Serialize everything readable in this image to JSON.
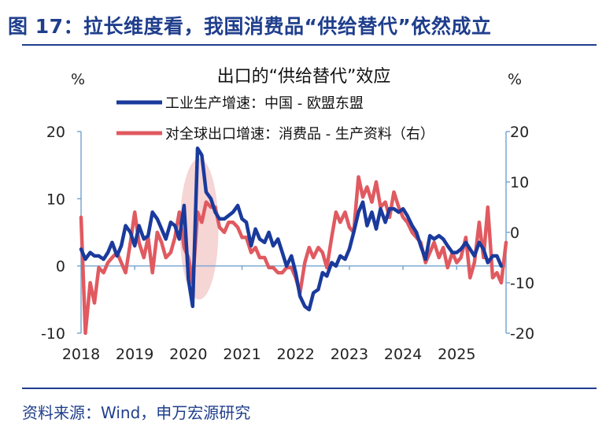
{
  "figure": {
    "title": "图 17：拉长维度看，我国消费品“供给替代”依然成立",
    "source": "资料来源：Wind，申万宏源研究"
  },
  "chart_data": {
    "type": "line",
    "title": "出口的“供给替代”效应",
    "y_unit_left": "%",
    "y_unit_right": "%",
    "x_ticks": [
      "2018",
      "2019",
      "2020",
      "2021",
      "2022",
      "2023",
      "2024",
      "2025"
    ],
    "x_range": [
      2018.0,
      2025.92
    ],
    "y_left": {
      "range": [
        -10,
        20
      ],
      "ticks": [
        "-10",
        "0",
        "10",
        "20"
      ],
      "values": [
        -10,
        0,
        10,
        20
      ]
    },
    "y_right": {
      "range": [
        -20,
        20
      ],
      "ticks": [
        "-20",
        "-10",
        "0",
        "10",
        "20"
      ],
      "values": [
        -20,
        -10,
        0,
        10,
        20
      ]
    },
    "legend_position": "top-left",
    "highlight": {
      "type": "ellipse",
      "x_center": 2020.2,
      "y_center_left": 5.5,
      "x_halfwidth": 0.36,
      "y_halfheight_left": 10.5,
      "color": "#f6d5d5"
    },
    "series": [
      {
        "name": "工业生产增速：中国 - 欧盟东盟",
        "axis": "left",
        "color": "#1a3a9c",
        "x": [
          2018.0,
          2018.08,
          2018.17,
          2018.25,
          2018.33,
          2018.42,
          2018.5,
          2018.58,
          2018.67,
          2018.75,
          2018.83,
          2018.92,
          2019.0,
          2019.08,
          2019.17,
          2019.25,
          2019.33,
          2019.42,
          2019.5,
          2019.58,
          2019.67,
          2019.75,
          2019.83,
          2019.92,
          2020.0,
          2020.08,
          2020.17,
          2020.25,
          2020.33,
          2020.42,
          2020.5,
          2020.58,
          2020.67,
          2020.75,
          2020.83,
          2020.92,
          2021.0,
          2021.08,
          2021.17,
          2021.25,
          2021.33,
          2021.42,
          2021.5,
          2021.58,
          2021.67,
          2021.75,
          2021.83,
          2021.92,
          2022.0,
          2022.08,
          2022.17,
          2022.25,
          2022.33,
          2022.42,
          2022.5,
          2022.58,
          2022.67,
          2022.75,
          2022.83,
          2022.92,
          2023.0,
          2023.08,
          2023.17,
          2023.25,
          2023.33,
          2023.42,
          2023.5,
          2023.58,
          2023.67,
          2023.75,
          2023.83,
          2023.92,
          2024.0,
          2024.08,
          2024.17,
          2024.25,
          2024.33,
          2024.42,
          2024.5,
          2024.58,
          2024.67,
          2024.75,
          2024.83,
          2024.92,
          2025.0,
          2025.08,
          2025.17,
          2025.25,
          2025.33,
          2025.42,
          2025.5,
          2025.58,
          2025.67,
          2025.75,
          2025.83
        ],
        "y": [
          2.5,
          1.0,
          2.0,
          1.5,
          1.5,
          1.0,
          2.0,
          3.5,
          1.5,
          3.0,
          6.0,
          5.0,
          3.0,
          6.0,
          4.0,
          4.5,
          8.0,
          7.0,
          5.5,
          4.0,
          6.5,
          6.0,
          4.0,
          9.0,
          -2.0,
          -6.0,
          17.5,
          16.5,
          11.0,
          10.0,
          8.0,
          7.0,
          7.0,
          7.5,
          8.0,
          9.0,
          7.0,
          6.5,
          3.0,
          5.5,
          4.0,
          3.5,
          5.0,
          3.0,
          4.0,
          2.0,
          0.0,
          1.5,
          -1.0,
          -4.5,
          -6.0,
          -6.5,
          -4.0,
          -3.5,
          -1.0,
          -1.5,
          0.5,
          0.0,
          1.5,
          1.0,
          2.5,
          5.0,
          8.0,
          9.5,
          6.0,
          8.0,
          5.5,
          8.5,
          6.5,
          8.5,
          8.5,
          8.0,
          8.5,
          7.5,
          6.0,
          5.0,
          3.0,
          1.0,
          4.5,
          4.0,
          4.5,
          4.0,
          3.0,
          2.0,
          2.0,
          2.5,
          3.5,
          2.5,
          1.5,
          3.5,
          2.5,
          0.5,
          1.5,
          1.5,
          0.0
        ]
      },
      {
        "name": "对全球出口增速：消费品 - 生产资料（右）",
        "axis": "right",
        "color": "#e05a60",
        "x": [
          2018.0,
          2018.08,
          2018.17,
          2018.25,
          2018.33,
          2018.42,
          2018.5,
          2018.58,
          2018.67,
          2018.75,
          2018.83,
          2018.92,
          2019.0,
          2019.08,
          2019.17,
          2019.25,
          2019.33,
          2019.42,
          2019.5,
          2019.58,
          2019.67,
          2019.75,
          2019.83,
          2019.92,
          2020.0,
          2020.08,
          2020.17,
          2020.25,
          2020.33,
          2020.42,
          2020.5,
          2020.58,
          2020.67,
          2020.75,
          2020.83,
          2020.92,
          2021.0,
          2021.08,
          2021.17,
          2021.25,
          2021.33,
          2021.42,
          2021.5,
          2021.58,
          2021.67,
          2021.75,
          2021.83,
          2021.92,
          2022.0,
          2022.08,
          2022.17,
          2022.25,
          2022.33,
          2022.42,
          2022.5,
          2022.58,
          2022.67,
          2022.75,
          2022.83,
          2022.92,
          2023.0,
          2023.08,
          2023.17,
          2023.25,
          2023.33,
          2023.42,
          2023.5,
          2023.58,
          2023.67,
          2023.75,
          2023.83,
          2023.92,
          2024.0,
          2024.08,
          2024.17,
          2024.25,
          2024.33,
          2024.42,
          2024.5,
          2024.58,
          2024.67,
          2024.75,
          2024.83,
          2024.92,
          2025.0,
          2025.08,
          2025.17,
          2025.25,
          2025.33,
          2025.42,
          2025.5,
          2025.58,
          2025.67,
          2025.75,
          2025.83,
          2025.92
        ],
        "y": [
          3,
          -20,
          -10,
          -14,
          -7,
          -8,
          -6,
          -5,
          -4,
          -6,
          -8,
          -2,
          4,
          -2,
          -5,
          -1,
          -8,
          0,
          -2,
          -5,
          -4,
          -1,
          4,
          -3,
          -5,
          -10,
          4,
          2,
          6,
          5,
          5,
          1,
          0,
          2,
          2,
          1,
          -1,
          -1,
          -4,
          -3,
          -5,
          -5,
          -7,
          -7,
          -8,
          -8,
          -7,
          -7,
          -9,
          -12,
          -6,
          -3,
          -5,
          -3,
          -4,
          -7,
          -1,
          4,
          2,
          4,
          1,
          0,
          11,
          7,
          9,
          6,
          10,
          5,
          6,
          3,
          8,
          5,
          3,
          2,
          0,
          -1,
          -2,
          -6,
          -4,
          -2,
          -5,
          -3,
          -7,
          -4,
          -6,
          -5,
          -1,
          -9,
          -6,
          2,
          -5,
          5,
          -9,
          -8,
          -10,
          -2
        ]
      }
    ]
  }
}
